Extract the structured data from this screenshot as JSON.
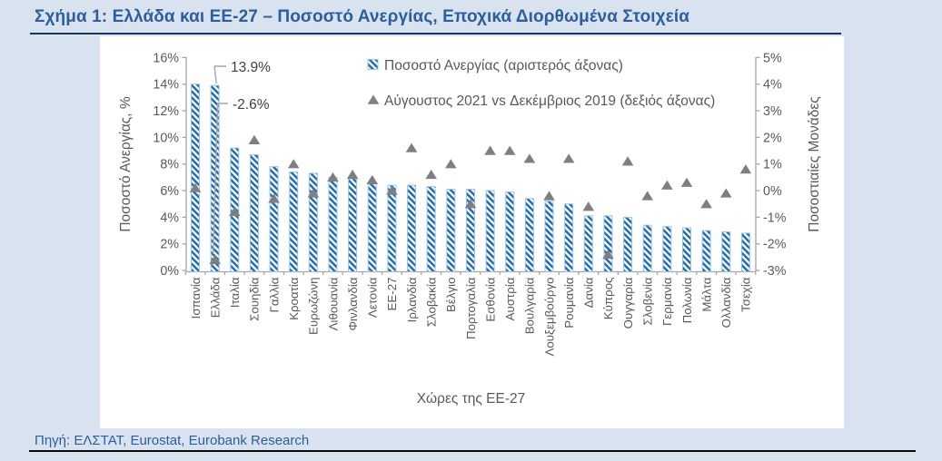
{
  "page": {
    "title": "Σχήμα 1: Ελλάδα και ΕΕ-27 – Ποσοστό Ανεργίας, Εποχικά Διορθωμένα Στοιχεία",
    "source_note": "Πηγή: ΕΛΣΤΑΤ, Eurostat, Eurobank Research"
  },
  "colors": {
    "page_background": "#d9e3ef",
    "panel_background": "#ffffff",
    "title_text": "#2c5d9e",
    "title_rule": "#17365d",
    "source_text": "#2c5d9e",
    "source_rule": "#0b0b0b",
    "bar_stripe": "#1f6cb4",
    "bar_border": "#9dc3e6",
    "triangle": "#7f7f7f",
    "axis_text": "#595959",
    "axis_line": "#a6a6a6",
    "annotation_text": "#3f3f3f",
    "leader_line": "#a6a6a6"
  },
  "chart_data": {
    "type": "bar",
    "subtype": "dual-axis combo: bars (left axis) + triangle markers (right axis)",
    "xlabel": "Χώρες της ΕΕ-27",
    "grid": false,
    "legend_position": "top-inside",
    "categories": [
      "Ισπανία",
      "Ελλάδα",
      "Ιταλία",
      "Σουηδία",
      "Γαλλία",
      "Κροατία",
      "Ευρωζώνη",
      "Λιθουανία",
      "Φινλανδία",
      "Λετονία",
      "ΕΕ-27",
      "Ιρλανδία",
      "Σλοβακία",
      "Βέλγιο",
      "Πορτογαλία",
      "Εσθονία",
      "Αυστρία",
      "Βουλγαρία",
      "Λουξεμβούργο",
      "Ρουμανία",
      "Δανία",
      "Κύπρος",
      "Ουγγαρία",
      "Σλοβενία",
      "Γερμανία",
      "Πολωνία",
      "Μάλτα",
      "Ολλανδία",
      "Τσεχία"
    ],
    "series": [
      {
        "name": "Ποσοστό Ανεργίας (αριστερός άξονας)",
        "type": "bar",
        "axis": "left",
        "unit": "%",
        "values": [
          14.0,
          13.9,
          9.2,
          8.7,
          7.8,
          7.4,
          7.3,
          7.0,
          6.9,
          6.6,
          6.4,
          6.4,
          6.3,
          6.1,
          6.1,
          6.0,
          5.9,
          5.4,
          5.2,
          5.0,
          4.1,
          4.1,
          4.0,
          3.4,
          3.3,
          3.2,
          3.0,
          2.9,
          2.8
        ]
      },
      {
        "name": "Αύγουστος 2021 vs Δεκέμβριος 2019 (δεξιός άξονας)",
        "type": "scatter",
        "marker": "triangle",
        "axis": "right",
        "unit": "pp",
        "values": [
          0.1,
          -2.6,
          -0.8,
          1.9,
          -0.3,
          1.0,
          -0.1,
          0.5,
          0.6,
          0.4,
          0.0,
          1.6,
          0.6,
          1.0,
          -0.5,
          1.5,
          1.5,
          1.2,
          -0.2,
          1.2,
          -0.6,
          -2.4,
          1.1,
          -0.2,
          0.2,
          0.3,
          -0.5,
          -0.1,
          0.8
        ]
      }
    ],
    "left_axis": {
      "title": "Ποσοστό Ανεργίας, %",
      "min": 0,
      "max": 16,
      "step": 2,
      "tick_suffix": "%"
    },
    "right_axis": {
      "title": "Ποσοστιαίες Μονάδες",
      "min": -3,
      "max": 5,
      "step": 1,
      "tick_suffix": "%"
    },
    "annotations": [
      {
        "text": "13.9%",
        "category": "Ελλάδα",
        "series": 0
      },
      {
        "text": "-2.6%",
        "category": "Ελλάδα",
        "series": 1
      }
    ]
  }
}
